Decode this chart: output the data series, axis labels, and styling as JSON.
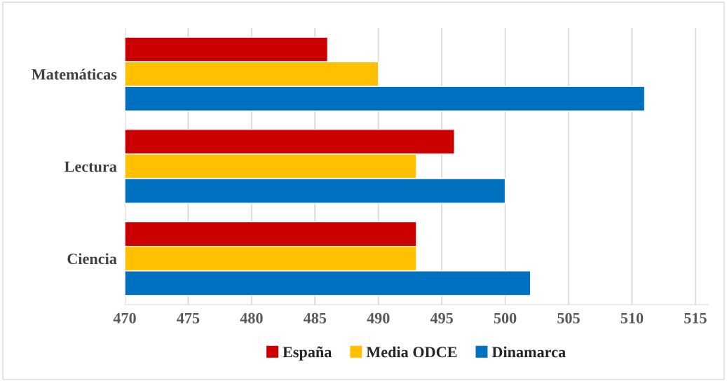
{
  "chart_data": {
    "type": "bar",
    "orientation": "horizontal",
    "categories": [
      "Matemáticas",
      "Lectura",
      "Ciencia"
    ],
    "series": [
      {
        "name": "España",
        "color": "#cc0000",
        "values": [
          486,
          496,
          493
        ]
      },
      {
        "name": "Media ODCE",
        "color": "#ffc000",
        "values": [
          490,
          493,
          493
        ]
      },
      {
        "name": "Dinamarca",
        "color": "#0070c0",
        "values": [
          511,
          500,
          502
        ]
      }
    ],
    "xlim": [
      470,
      516
    ],
    "xticks": [
      470,
      475,
      480,
      485,
      490,
      495,
      500,
      505,
      510,
      515
    ],
    "grid": "x",
    "legend": "bottom"
  }
}
